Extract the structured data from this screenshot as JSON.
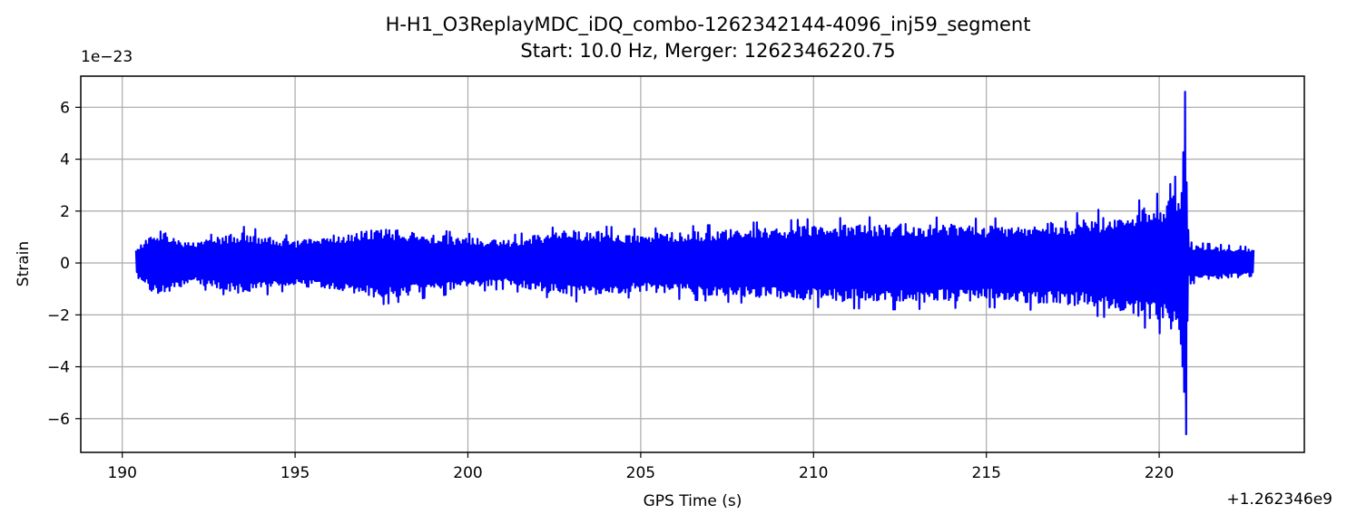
{
  "chart_data": {
    "type": "line",
    "title_line1": "H-H1_O3ReplayMDC_iDQ_combo-1262342144-4096_inj59_segment",
    "title_line2": "Start: 10.0 Hz, Merger: 1262346220.75",
    "xlabel": "GPS Time (s)",
    "ylabel": "Strain",
    "x_offset_label": "+1.262346e9",
    "y_scale_label": "1e−23",
    "x_offset": 1262346000,
    "y_scale": 1e-23,
    "xlim": [
      188.8,
      224.2
    ],
    "ylim": [
      -7.3,
      7.2
    ],
    "xticks": [
      190,
      195,
      200,
      205,
      210,
      215,
      220
    ],
    "xtick_labels": [
      "190",
      "195",
      "200",
      "205",
      "210",
      "215",
      "220"
    ],
    "yticks": [
      6,
      4,
      2,
      0,
      -2,
      -4,
      -6
    ],
    "ytick_labels": [
      "6",
      "4",
      "2",
      "0",
      "−2",
      "−4",
      "−6"
    ],
    "grid": true,
    "series": [
      {
        "color": "#0000ff",
        "x_start": 190.4,
        "x_end": 222.75,
        "merger_x": 220.75,
        "y_max": 6.6,
        "y_min": -6.6,
        "envelope": [
          {
            "x": 190.4,
            "amp": 0.6
          },
          {
            "x": 191.0,
            "amp": 1.5
          },
          {
            "x": 192.0,
            "amp": 0.9
          },
          {
            "x": 193.5,
            "amp": 1.4
          },
          {
            "x": 195.0,
            "amp": 1.0
          },
          {
            "x": 197.5,
            "amp": 1.6
          },
          {
            "x": 199.5,
            "amp": 1.2
          },
          {
            "x": 201.0,
            "amp": 1.0
          },
          {
            "x": 203.0,
            "amp": 1.5
          },
          {
            "x": 205.0,
            "amp": 1.3
          },
          {
            "x": 207.5,
            "amp": 1.5
          },
          {
            "x": 210.0,
            "amp": 1.7
          },
          {
            "x": 212.5,
            "amp": 1.8
          },
          {
            "x": 215.0,
            "amp": 1.7
          },
          {
            "x": 217.5,
            "amp": 1.9
          },
          {
            "x": 219.0,
            "amp": 2.2
          },
          {
            "x": 220.2,
            "amp": 2.8
          },
          {
            "x": 220.6,
            "amp": 3.6
          },
          {
            "x": 220.75,
            "amp": 6.6
          },
          {
            "x": 220.85,
            "amp": 0.8
          },
          {
            "x": 222.75,
            "amp": 0.6
          }
        ]
      }
    ]
  }
}
